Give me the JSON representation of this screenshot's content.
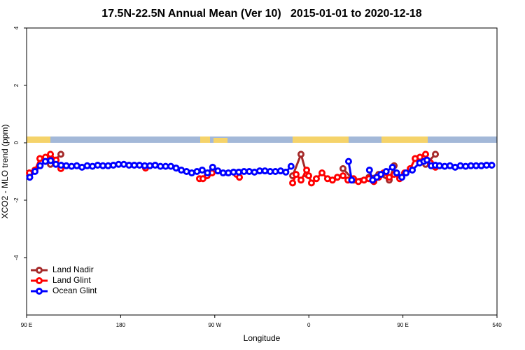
{
  "chart_data": {
    "type": "line",
    "title": "17.5N-22.5N Annual Mean (Ver 10)   2015-01-01 to 2020-12-18",
    "x_label": "Longitude",
    "y_label": "XCO2 - MLO trend (ppm)",
    "xlim": [
      90,
      540
    ],
    "ylim": [
      -6,
      4
    ],
    "xticks": [
      {
        "value": 90,
        "label": "90 E"
      },
      180,
      {
        "value": 270,
        "label": "90 W"
      },
      {
        "value": 360,
        "label": "0"
      },
      {
        "value": 450,
        "label": "90 E"
      },
      540
    ],
    "yticks": [
      4,
      2,
      0,
      -2,
      -4
    ],
    "legend": "bottom-left",
    "grid": false,
    "series": [
      {
        "name": "Land Nadir",
        "color": "#a52a2a",
        "x": [
          108.1,
          112.8,
          122.8,
          null,
          344.5,
          352.5,
          357.9,
          null,
          392.7,
          402.7,
          417.5,
          426.8,
          436.9,
          441.6,
          null,
          471.7,
          481.1
        ],
        "values": [
          -0.65,
          -0.75,
          -0.4,
          null,
          -1.15,
          -0.4,
          -1.1,
          null,
          -0.9,
          -1.3,
          -1.2,
          -1.1,
          -1.3,
          -0.8,
          null,
          -0.75,
          -0.4
        ]
      },
      {
        "name": "Land Glint",
        "color": "#ff0000",
        "x": [
          92.7,
          98,
          102.7,
          108.1,
          112.8,
          118.2,
          122.8,
          null,
          203.8,
          null,
          255.4,
          258.7,
          262.7,
          267.4,
          null,
          290.9,
          293.6,
          null,
          344.5,
          347.8,
          352.5,
          357.9,
          359.9,
          362.5,
          367.2,
          372.6,
          377.9,
          382.6,
          387.3,
          392.7,
          397.4,
          402.7,
          407.4,
          412.8,
          417.5,
          422.2,
          426.8,
          431.5,
          436.9,
          441.6,
          446.9,
          451.6,
          457,
          461.7,
          466.3,
          471.7,
          476.4,
          481.1
        ],
        "values": [
          -1.05,
          -0.95,
          -0.55,
          -0.5,
          -0.4,
          -0.6,
          -0.9,
          null,
          -0.88,
          null,
          -1.25,
          -1.25,
          -1.15,
          -1.05,
          null,
          -1.1,
          -1.2,
          null,
          -1.4,
          -1.1,
          -1.3,
          -0.95,
          -1.15,
          -1.4,
          -1.25,
          -1.05,
          -1.25,
          -1.3,
          -1.2,
          -1.15,
          -1.3,
          -1.25,
          -1.35,
          -1.3,
          -1.25,
          -1.35,
          -1.2,
          -1.05,
          -1.2,
          -1.1,
          -1.25,
          -1.05,
          -0.9,
          -0.55,
          -0.5,
          -0.4,
          -0.7,
          -0.85
        ]
      },
      {
        "name": "Ocean Glint",
        "color": "#0000ff",
        "x": [
          93,
          98,
          103,
          108,
          113,
          118,
          123,
          128,
          133,
          138,
          143,
          148,
          153,
          158,
          163,
          168,
          173,
          178,
          183,
          188,
          193,
          198,
          203,
          208,
          213,
          218,
          223,
          228,
          233,
          238,
          243,
          248,
          253,
          258,
          263,
          268,
          273,
          278,
          283,
          288,
          293,
          298,
          303,
          308,
          313,
          318,
          323,
          328,
          333,
          338,
          343,
          null,
          398,
          401,
          null,
          418,
          421,
          425,
          429,
          434,
          440,
          444,
          449,
          453,
          459,
          466,
          470,
          473,
          477,
          481,
          485,
          490,
          495,
          500,
          505,
          510,
          515,
          520,
          525,
          530,
          535
        ],
        "values": [
          -1.2,
          -1.0,
          -0.8,
          -0.65,
          -0.62,
          -0.75,
          -0.78,
          -0.8,
          -0.82,
          -0.8,
          -0.85,
          -0.8,
          -0.82,
          -0.78,
          -0.8,
          -0.8,
          -0.78,
          -0.75,
          -0.75,
          -0.78,
          -0.78,
          -0.78,
          -0.8,
          -0.8,
          -0.78,
          -0.82,
          -0.82,
          -0.82,
          -0.88,
          -0.95,
          -1.0,
          -1.05,
          -1.0,
          -0.95,
          -1.05,
          -0.85,
          -0.98,
          -1.05,
          -1.05,
          -1.02,
          -1.02,
          -1.0,
          -1.0,
          -1.02,
          -0.98,
          -0.98,
          -1.0,
          -1.0,
          -0.98,
          -1.02,
          -0.82,
          null,
          -0.65,
          -1.3,
          null,
          -0.95,
          -1.3,
          -1.2,
          -1.1,
          -1.0,
          -0.85,
          -1.05,
          -1.2,
          -1.05,
          -0.95,
          -0.7,
          -0.65,
          -0.6,
          -0.8,
          -0.78,
          -0.8,
          -0.82,
          -0.8,
          -0.85,
          -0.8,
          -0.82,
          -0.8,
          -0.8,
          -0.8,
          -0.78,
          -0.78
        ]
      }
    ]
  }
}
